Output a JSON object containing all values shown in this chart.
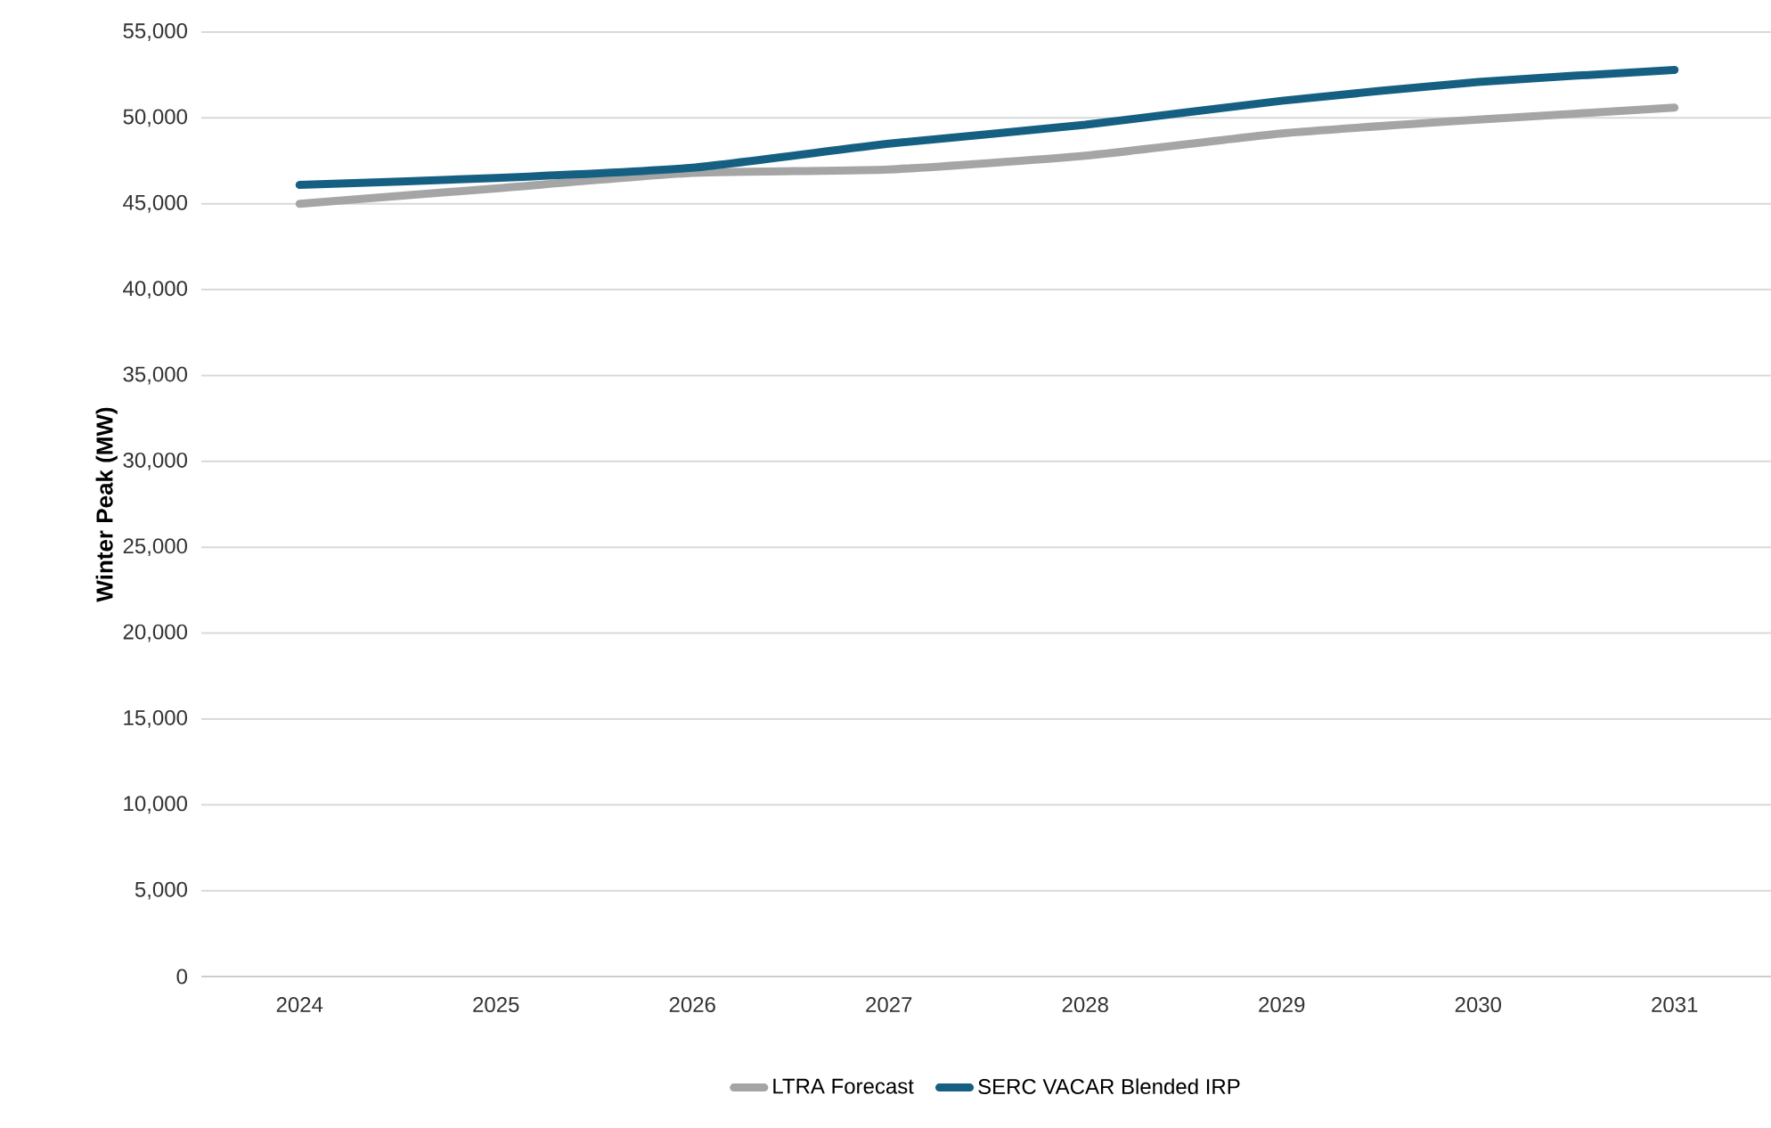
{
  "chart_data": {
    "type": "line",
    "ylabel": "Winter Peak (MW)",
    "categories": [
      "2024",
      "2025",
      "2026",
      "2027",
      "2028",
      "2029",
      "2030",
      "2031"
    ],
    "series": [
      {
        "name": "LTRA Forecast",
        "color": "#a5a5a5",
        "values": [
          45000,
          45900,
          46800,
          47000,
          47800,
          49100,
          49900,
          50600
        ]
      },
      {
        "name": "SERC VACAR Blended IRP",
        "color": "#156082",
        "values": [
          46100,
          46500,
          47100,
          48500,
          49600,
          51000,
          52100,
          52800
        ]
      }
    ],
    "ylim": [
      0,
      55000
    ],
    "yticks": [
      {
        "value": 0,
        "label": "0"
      },
      {
        "value": 5000,
        "label": "5,000"
      },
      {
        "value": 10000,
        "label": "10,000"
      },
      {
        "value": 15000,
        "label": "15,000"
      },
      {
        "value": 20000,
        "label": "20,000"
      },
      {
        "value": 25000,
        "label": "25,000"
      },
      {
        "value": 30000,
        "label": "30,000"
      },
      {
        "value": 35000,
        "label": "35,000"
      },
      {
        "value": 40000,
        "label": "40,000"
      },
      {
        "value": 45000,
        "label": "45,000"
      },
      {
        "value": 50000,
        "label": "50,000"
      },
      {
        "value": 55000,
        "label": "55,000"
      }
    ],
    "grid": "y",
    "legend": "bottom",
    "marker": "none",
    "line_style": "solid"
  }
}
